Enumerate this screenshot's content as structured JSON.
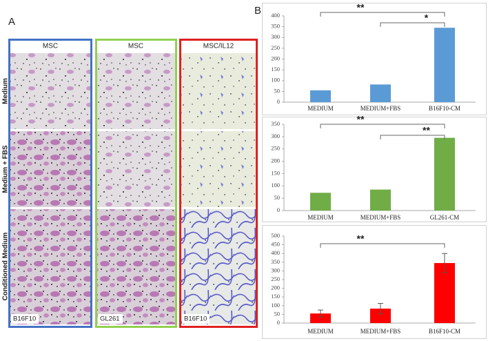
{
  "panel_labels": [
    "A",
    "B"
  ],
  "panel_a": {
    "column_headers": [
      "MSC",
      "MSC",
      "MSC/IL12"
    ],
    "row_labels": [
      "Medium",
      "Medium + FBS",
      "Conditioned Medium"
    ],
    "cell_labels": [
      "B16F10",
      "GL261",
      "B16F10"
    ]
  },
  "chart_data": [
    {
      "type": "bar",
      "categories": [
        "MEDIUM",
        "MEDIUM+FBS",
        "B16F10-CM"
      ],
      "values": [
        55,
        82,
        345
      ],
      "color": "#5b9bd5",
      "ylim": [
        0,
        400
      ],
      "yticks": [
        0,
        50,
        100,
        150,
        200,
        250,
        300,
        350,
        400
      ],
      "annotations": [
        "**",
        "*"
      ]
    },
    {
      "type": "bar",
      "categories": [
        "MEDIUM",
        "MEDIUM+FBS",
        "GL261-CM"
      ],
      "values": [
        72,
        85,
        295
      ],
      "color": "#70ad47",
      "ylim": [
        0,
        350
      ],
      "yticks": [
        0,
        50,
        100,
        150,
        200,
        250,
        300,
        350
      ],
      "annotations": [
        "**",
        "**"
      ]
    },
    {
      "type": "bar",
      "categories": [
        "MEDIUM",
        "MEDIUM+FBS",
        "B16F10-CM"
      ],
      "values": [
        55,
        83,
        345
      ],
      "errors": [
        20,
        30,
        55
      ],
      "color": "#ff0000",
      "ylim": [
        0,
        500
      ],
      "yticks": [
        0,
        50,
        100,
        150,
        200,
        250,
        300,
        350,
        400,
        450,
        500
      ],
      "annotations": [
        "**"
      ]
    }
  ]
}
